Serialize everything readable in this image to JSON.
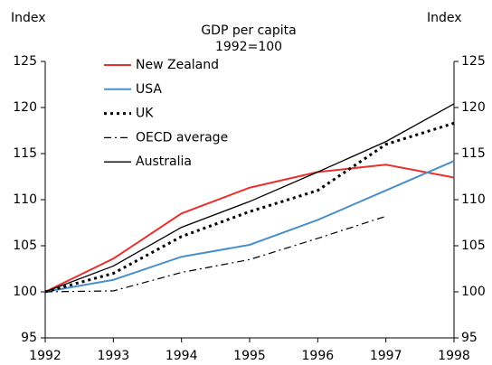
{
  "chart_data": {
    "type": "line",
    "title": "GDP per capita",
    "subtitle": "1992=100",
    "ylabel": "Index",
    "y2label": "Index",
    "x": [
      1992,
      1993,
      1994,
      1995,
      1996,
      1997,
      1998
    ],
    "xlim": [
      1992,
      1998
    ],
    "xticks": [
      1992,
      1993,
      1994,
      1995,
      1996,
      1997,
      1998
    ],
    "ylim": [
      95,
      125
    ],
    "yticks": [
      95,
      100,
      105,
      110,
      115,
      120,
      125
    ],
    "y2lim": [
      95,
      125
    ],
    "y2ticks": [
      95,
      100,
      105,
      110,
      115,
      120,
      125
    ],
    "grid": false,
    "legend": "upper left",
    "series": [
      {
        "name": "New Zealand",
        "color": "#e8312f",
        "dash": "solid",
        "width": 2,
        "values": [
          100,
          103.6,
          108.5,
          111.3,
          113.0,
          113.8,
          112.4
        ]
      },
      {
        "name": "USA",
        "color": "#4a90c8",
        "dash": "solid",
        "width": 2,
        "values": [
          100,
          101.3,
          103.8,
          105.1,
          107.8,
          111.0,
          114.2
        ]
      },
      {
        "name": "UK",
        "color": "#000000",
        "dash": "dot",
        "width": 3,
        "values": [
          100,
          102.0,
          106.0,
          108.7,
          111.0,
          116.0,
          118.3
        ]
      },
      {
        "name": "OECD average",
        "color": "#000000",
        "dash": "dashdot",
        "width": 1.2,
        "values": [
          100,
          100.1,
          102.1,
          103.5,
          105.8,
          108.2,
          null
        ]
      },
      {
        "name": "Australia",
        "color": "#000000",
        "dash": "solid",
        "width": 1.3,
        "values": [
          100,
          102.8,
          107.0,
          109.8,
          113.0,
          116.3,
          120.4
        ]
      }
    ]
  }
}
